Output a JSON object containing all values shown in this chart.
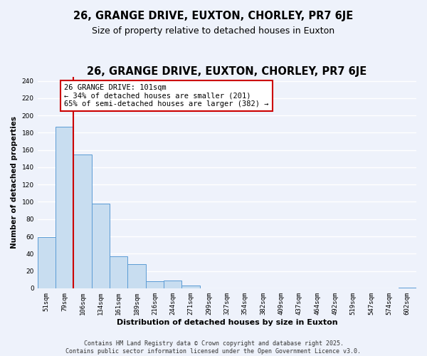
{
  "title": "26, GRANGE DRIVE, EUXTON, CHORLEY, PR7 6JE",
  "subtitle": "Size of property relative to detached houses in Euxton",
  "xlabel": "Distribution of detached houses by size in Euxton",
  "ylabel": "Number of detached properties",
  "categories": [
    "51sqm",
    "79sqm",
    "106sqm",
    "134sqm",
    "161sqm",
    "189sqm",
    "216sqm",
    "244sqm",
    "271sqm",
    "299sqm",
    "327sqm",
    "354sqm",
    "382sqm",
    "409sqm",
    "437sqm",
    "464sqm",
    "492sqm",
    "519sqm",
    "547sqm",
    "574sqm",
    "602sqm"
  ],
  "values": [
    59,
    187,
    155,
    98,
    37,
    28,
    8,
    9,
    3,
    0,
    0,
    0,
    0,
    0,
    0,
    0,
    0,
    0,
    0,
    0,
    1
  ],
  "bar_color": "#c8ddf0",
  "bar_edge_color": "#5b9bd5",
  "reference_line_x": 1.5,
  "reference_line_color": "#cc0000",
  "annotation_box_text": "26 GRANGE DRIVE: 101sqm\n← 34% of detached houses are smaller (201)\n65% of semi-detached houses are larger (382) →",
  "ylim": [
    0,
    245
  ],
  "yticks": [
    0,
    20,
    40,
    60,
    80,
    100,
    120,
    140,
    160,
    180,
    200,
    220,
    240
  ],
  "background_color": "#eef2fb",
  "grid_color": "#ffffff",
  "footer_text": "Contains HM Land Registry data © Crown copyright and database right 2025.\nContains public sector information licensed under the Open Government Licence v3.0.",
  "title_fontsize": 10.5,
  "subtitle_fontsize": 9,
  "xlabel_fontsize": 8,
  "ylabel_fontsize": 7.5,
  "tick_fontsize": 6.5,
  "annotation_fontsize": 7.5,
  "footer_fontsize": 6
}
